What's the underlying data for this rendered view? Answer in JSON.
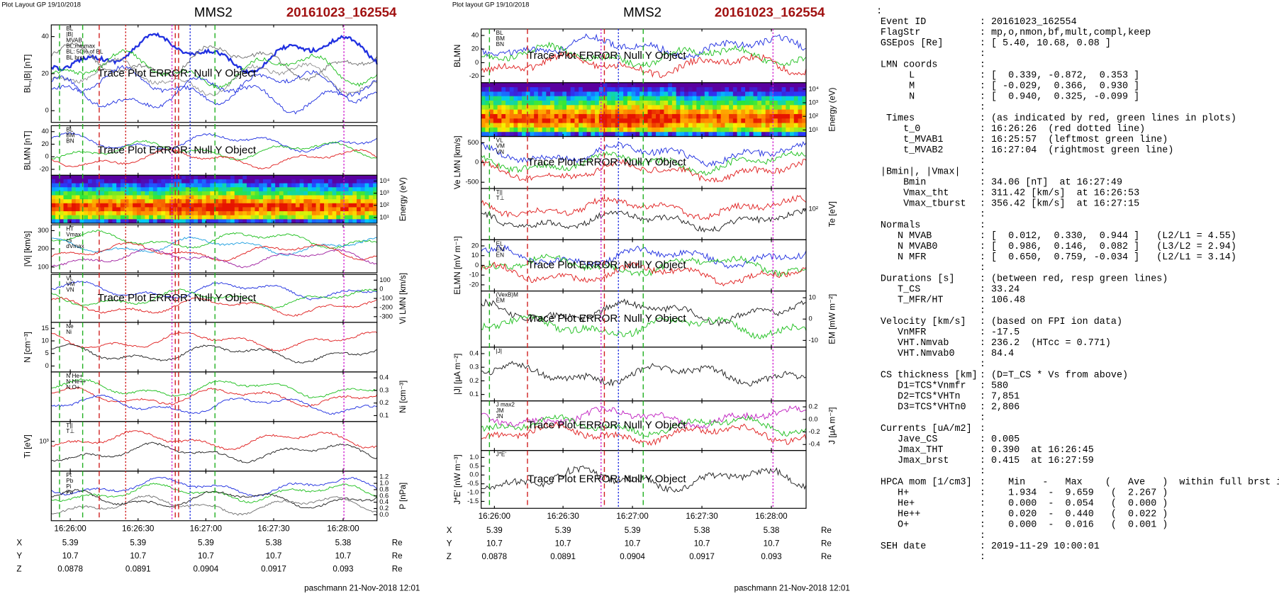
{
  "plots": [
    {
      "header": "Plot Layout GP 19/10/2018",
      "title": "MMS2",
      "event": "20161023_162554",
      "footer": "paschmann 21-Nov-2018 12:01",
      "error": "Trace Plot ERROR: Null Y Object",
      "time_ticks": [
        "16:26:00",
        "16:26:30",
        "16:27:00",
        "16:27:30",
        "16:28:00"
      ],
      "ephemeris": [
        {
          "label": "X",
          "values": [
            "5.39",
            "5.39",
            "5.39",
            "5.38",
            "5.38"
          ],
          "unit": "Re"
        },
        {
          "label": "Y",
          "values": [
            "10.7",
            "10.7",
            "10.7",
            "10.7",
            "10.7"
          ],
          "unit": "Re"
        },
        {
          "label": "Z",
          "values": [
            "0.0878",
            "0.0891",
            "0.0904",
            "0.0917",
            "0.093"
          ],
          "unit": "Re"
        }
      ],
      "panels": [
        {
          "ylabel": "BL,|B| [nT]",
          "side": "left",
          "yticks": [
            "40",
            "20",
            "0"
          ],
          "kind": "line",
          "error": true,
          "legend": [
            {
              "name": "BL",
              "color": "#2030e0"
            },
            {
              "name": "|B|",
              "color": "#707070"
            },
            {
              "name": "MVAB",
              "color": "#20c020"
            },
            {
              "name": "BL,minmax",
              "color": "#909090"
            },
            {
              "name": "BL: 50% of BL",
              "color": "#2030e0"
            },
            {
              "name": "BL brst",
              "color": "#2030e0"
            }
          ]
        },
        {
          "ylabel": "BLMN [nT]",
          "side": "left",
          "yticks": [
            "40",
            "20",
            "0",
            "-20"
          ],
          "kind": "line",
          "error": true,
          "legend": [
            {
              "name": "BL",
              "color": "#2030e0"
            },
            {
              "name": "BM",
              "color": "#20c020"
            },
            {
              "name": "BN",
              "color": "#e02020"
            }
          ]
        },
        {
          "ylabel": "Energy (eV)",
          "side": "right",
          "yticks": [
            "10⁴",
            "10³",
            "10²",
            "10¹"
          ],
          "kind": "spec",
          "error": false,
          "legend": []
        },
        {
          "ylabel": "|Vi| [km/s]",
          "side": "left",
          "yticks": [
            "300",
            "200",
            "100"
          ],
          "kind": "line",
          "error": false,
          "legend": [
            {
              "name": "HT",
              "color": "#20c020"
            },
            {
              "name": "Vmax",
              "color": "#20a0e0"
            },
            {
              "name": "cs",
              "color": "#e02020"
            },
            {
              "name": "dVmax",
              "color": "#a020a0"
            }
          ]
        },
        {
          "ylabel": "Vi LMN [km/s]",
          "side": "right",
          "yticks": [
            "100",
            "0",
            "-100",
            "-200",
            "-300"
          ],
          "kind": "line",
          "error": true,
          "legend": [
            {
              "name": "VL",
              "color": "#2030e0"
            },
            {
              "name": "VM",
              "color": "#20c020"
            },
            {
              "name": "VN",
              "color": "#e02020"
            }
          ]
        },
        {
          "ylabel": "N [cm⁻³]",
          "side": "left",
          "yticks": [
            "15",
            "10",
            "5",
            "0"
          ],
          "kind": "line",
          "error": false,
          "legend": [
            {
              "name": "Ne",
              "color": "#e02020"
            },
            {
              "name": "Ni",
              "color": "#202020"
            }
          ]
        },
        {
          "ylabel": "Ni [cm⁻³]",
          "side": "right",
          "yticks": [
            "0.4",
            "0.3",
            "0.2",
            "0.1"
          ],
          "kind": "line",
          "error": false,
          "legend": [
            {
              "name": "N He+",
              "color": "#20c020"
            },
            {
              "name": "N He++",
              "color": "#e02020"
            },
            {
              "name": "N O+",
              "color": "#2030e0"
            }
          ]
        },
        {
          "ylabel": "Ti [eV]",
          "side": "left",
          "yticks": [
            "10³"
          ],
          "kind": "line",
          "error": false,
          "legend": [
            {
              "name": "T||",
              "color": "#e02020"
            },
            {
              "name": "T⊥",
              "color": "#202020"
            }
          ]
        },
        {
          "ylabel": "P [nPa]",
          "side": "right",
          "yticks": [
            "1.2",
            "1.0",
            "0.8",
            "0.6",
            "0.4",
            "0.2",
            "0.0"
          ],
          "kind": "line",
          "error": false,
          "legend": [
            {
              "name": "Pt",
              "color": "#2030e0"
            },
            {
              "name": "Pb",
              "color": "#20c020"
            },
            {
              "name": "Pi",
              "color": "#202020"
            },
            {
              "name": "Pe",
              "color": "#707070"
            }
          ]
        }
      ]
    },
    {
      "header": "Plot layout GP 19/10/2018",
      "title": "MMS2",
      "event": "20161023_162554",
      "footer": "paschmann 21-Nov-2018 12:01",
      "error": "Trace Plot ERROR: Null Y Object",
      "time_ticks": [
        "16:26:00",
        "16:26:30",
        "16:27:00",
        "16:27:30",
        "16:28:00"
      ],
      "ephemeris": [
        {
          "label": "X",
          "values": [
            "5.39",
            "5.39",
            "5.39",
            "5.38",
            "5.38"
          ],
          "unit": "Re"
        },
        {
          "label": "Y",
          "values": [
            "10.7",
            "10.7",
            "10.7",
            "10.7",
            "10.7"
          ],
          "unit": "Re"
        },
        {
          "label": "Z",
          "values": [
            "0.0878",
            "0.0891",
            "0.0904",
            "0.0917",
            "0.093"
          ],
          "unit": "Re"
        }
      ],
      "panels": [
        {
          "ylabel": "BLMN",
          "side": "left",
          "yticks": [
            "40",
            "20",
            "0",
            "-20"
          ],
          "kind": "line",
          "error": true,
          "legend": [
            {
              "name": "BL",
              "color": "#2030e0"
            },
            {
              "name": "BM",
              "color": "#20c020"
            },
            {
              "name": "BN",
              "color": "#e02020"
            }
          ]
        },
        {
          "ylabel": "Energy (eV)",
          "side": "right",
          "yticks": [
            "10⁴",
            "10³",
            "10²",
            "10¹"
          ],
          "kind": "spec",
          "error": false,
          "legend": []
        },
        {
          "ylabel": "Ve LMN [km/s]",
          "side": "left",
          "yticks": [
            "500",
            "0",
            "-500"
          ],
          "kind": "line",
          "error": true,
          "legend": [
            {
              "name": "VL",
              "color": "#2030e0"
            },
            {
              "name": "VM",
              "color": "#20c020"
            },
            {
              "name": "VN",
              "color": "#e02020"
            }
          ]
        },
        {
          "ylabel": "Te [eV]",
          "side": "right",
          "yticks": [
            "10²"
          ],
          "kind": "line",
          "error": false,
          "legend": [
            {
              "name": "T||",
              "color": "#e02020"
            },
            {
              "name": "T⊥",
              "color": "#202020"
            }
          ]
        },
        {
          "ylabel": "ELMN [mV m⁻¹]",
          "side": "left",
          "yticks": [
            "20",
            "10",
            "0",
            "-10",
            "-20"
          ],
          "kind": "line",
          "error": true,
          "legend": [
            {
              "name": "EL",
              "color": "#2030e0"
            },
            {
              "name": "EM",
              "color": "#20c020"
            },
            {
              "name": "EN",
              "color": "#e02020"
            }
          ]
        },
        {
          "ylabel": "EM [mW m⁻²]",
          "side": "right",
          "yticks": [
            "10",
            "0",
            "-10"
          ],
          "kind": "line",
          "error": true,
          "legend": [
            {
              "name": "(VexB)M",
              "color": "#202020"
            },
            {
              "name": "EM",
              "color": "#20c020"
            }
          ]
        },
        {
          "ylabel": "|J| [µA m⁻²]",
          "side": "left",
          "yticks": [
            "0.4",
            "0.3",
            "0.2",
            "0.1"
          ],
          "kind": "line",
          "error": false,
          "legend": [
            {
              "name": "|J|",
              "color": "#202020"
            }
          ]
        },
        {
          "ylabel": "J [µA m⁻²]",
          "side": "right",
          "yticks": [
            "0.2",
            "0.0",
            "-0.2",
            "-0.4"
          ],
          "kind": "line",
          "error": true,
          "legend": [
            {
              "name": "J max2",
              "color": "#c020c0"
            },
            {
              "name": "JM",
              "color": "#20c020"
            },
            {
              "name": "JN",
              "color": "#e02020"
            }
          ]
        },
        {
          "ylabel": "J*E' [nW m⁻³]",
          "side": "left",
          "yticks": [
            "1.0",
            "0.5",
            "0.0",
            "-0.5",
            "-1.0",
            "-1.5"
          ],
          "kind": "line",
          "error": true,
          "legend": [
            {
              "name": "J*E'",
              "color": "#202020"
            }
          ]
        }
      ]
    }
  ],
  "summary": [
    {
      "value": ":"
    },
    {
      "key": "Event ID",
      "value": ": 20161023_162554"
    },
    {
      "key": "FlagStr",
      "value": ": mp,o,nmon,bf,mult,compl,keep"
    },
    {
      "key": "GSEpos [Re]",
      "value": ": [ 5.40, 10.68, 0.08 ]"
    },
    {
      "value": ":"
    },
    {
      "key": "LMN coords",
      "value": ":"
    },
    {
      "key": "     L",
      "value": ": [  0.339, -0.872,  0.353 ]"
    },
    {
      "key": "     M",
      "value": ": [ -0.029,  0.366,  0.930 ]"
    },
    {
      "key": "     N",
      "value": ": [  0.940,  0.325, -0.099 ]"
    },
    {
      "value": ":"
    },
    {
      "key": " Times",
      "value": ": (as indicated by red, green lines in plots)"
    },
    {
      "key": "    t_0",
      "value": ": 16:26:26  (red dotted line)"
    },
    {
      "key": "    t_MVAB1",
      "value": ": 16:25:57  (leftmost green line)"
    },
    {
      "key": "    t_MVAB2",
      "value": ": 16:27:04  (rightmost green line)"
    },
    {
      "value": ":"
    },
    {
      "key": "|Bmin|, |Vmax|",
      "value": ":"
    },
    {
      "key": "    Bmin",
      "value": ": 34.06 [nT]  at 16:27:49"
    },
    {
      "key": "    Vmax_tht",
      "value": ": 311.42 [km/s]  at 16:26:53"
    },
    {
      "key": "    Vmax_tburst",
      "value": ": 356.42 [km/s]  at 16:27:15"
    },
    {
      "value": ":"
    },
    {
      "key": "Normals",
      "value": ":"
    },
    {
      "key": "   N MVAB",
      "value": ": [  0.012,  0.330,  0.944 ]   (L2/L1 = 4.55)"
    },
    {
      "key": "   N MVAB0",
      "value": ": [  0.986,  0.146,  0.082 ]   (L3/L2 = 2.94)"
    },
    {
      "key": "   N MFR",
      "value": ": [  0.650,  0.759, -0.034 ]   (L2/L1 = 3.14)"
    },
    {
      "value": ":"
    },
    {
      "key": "Durations [s]",
      "value": ": (between red, resp green lines)"
    },
    {
      "key": "   T_CS",
      "value": ": 33.24"
    },
    {
      "key": "   T_MFR/HT",
      "value": ": 106.48"
    },
    {
      "value": ":"
    },
    {
      "key": "Velocity [km/s]",
      "value": ": (based on FPI ion data)"
    },
    {
      "key": "   VnMFR",
      "value": ": -17.5"
    },
    {
      "key": "   VHT.Nmvab",
      "value": ": 236.2  (HTcc = 0.771)"
    },
    {
      "key": "   VHT.Nmvab0",
      "value": ": 84.4"
    },
    {
      "value": ":"
    },
    {
      "key": "CS thickness [km]",
      "value": ": (D=T_CS * Vs from above)"
    },
    {
      "key": "   D1=TCS*Vnmfr",
      "value": ": 580"
    },
    {
      "key": "   D2=TCS*VHTn",
      "value": ": 7,851"
    },
    {
      "key": "   D3=TCS*VHTn0",
      "value": ": 2,806"
    },
    {
      "value": ":"
    },
    {
      "key": "Currents [uA/m2]",
      "value": ":"
    },
    {
      "key": "   Jave_CS",
      "value": ": 0.005"
    },
    {
      "key": "   Jmax_THT",
      "value": ": 0.390  at 16:26:45"
    },
    {
      "key": "   Jmax_brst",
      "value": ": 0.415  at 16:27:59"
    },
    {
      "value": ":"
    },
    {
      "key": "HPCA mom [1/cm3]",
      "value": ":    Min   -   Max    (   Ave   )  within full brst int"
    },
    {
      "key": "   H+",
      "value": ":    1.934  -  9.659   (  2.267 )"
    },
    {
      "key": "   He+",
      "value": ":    0.000  -  0.054   (  0.000 )"
    },
    {
      "key": "   He++",
      "value": ":    0.020  -  0.440   (  0.022 )"
    },
    {
      "key": "   O+",
      "value": ":    0.000  -  0.016   (  0.001 )"
    },
    {
      "value": ":"
    },
    {
      "key": "SEH date",
      "value": ": 2019-11-29 10:00:01"
    },
    {
      "value": ":"
    }
  ]
}
